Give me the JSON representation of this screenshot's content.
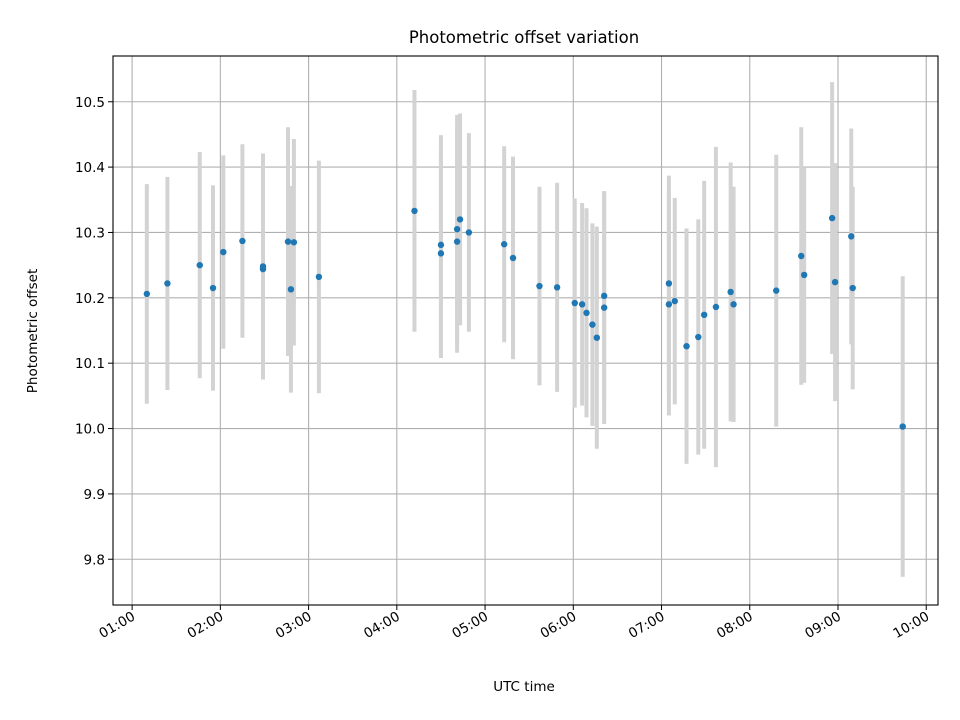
{
  "chart_data": {
    "type": "scatter",
    "title": "Photometric offset variation",
    "xlabel": "UTC time",
    "ylabel": "Photometric offset",
    "xlim": [
      "00:47",
      "10:08"
    ],
    "ylim": [
      9.73,
      10.57
    ],
    "grid": true,
    "x_ticks": [
      "01:00",
      "02:00",
      "03:00",
      "04:00",
      "05:00",
      "06:00",
      "07:00",
      "08:00",
      "09:00",
      "10:00"
    ],
    "y_ticks": [
      9.8,
      9.9,
      10.0,
      10.1,
      10.2,
      10.3,
      10.4,
      10.5
    ],
    "y_tick_labels": [
      "9.8",
      "9.9",
      "10.0",
      "10.1",
      "10.2",
      "10.3",
      "10.4",
      "10.5"
    ],
    "colors": {
      "points": "#1f77b4",
      "error_bars": "#d3d3d3",
      "grid": "#b0b0b0"
    },
    "series": [
      {
        "x": [
          "01:10",
          "01:24",
          "01:46",
          "01:55",
          "02:02",
          "02:15",
          "02:29",
          "02:29",
          "02:46",
          "02:48",
          "02:50",
          "03:07",
          "04:12",
          "04:30",
          "04:30",
          "04:41",
          "04:41",
          "04:43",
          "04:49",
          "05:13",
          "05:19",
          "05:37",
          "05:49",
          "06:01",
          "06:06",
          "06:09",
          "06:13",
          "06:16",
          "06:21",
          "06:21",
          "07:05",
          "07:05",
          "07:09",
          "07:17",
          "07:25",
          "07:29",
          "07:37",
          "07:47",
          "07:49",
          "08:18",
          "08:35",
          "08:37",
          "08:56",
          "08:58",
          "09:09",
          "09:10",
          "09:44"
        ],
        "y": [
          10.206,
          10.222,
          10.25,
          10.215,
          10.27,
          10.287,
          10.248,
          10.244,
          10.286,
          10.213,
          10.285,
          10.232,
          10.333,
          10.281,
          10.268,
          10.305,
          10.286,
          10.32,
          10.3,
          10.282,
          10.261,
          10.218,
          10.216,
          10.192,
          10.19,
          10.177,
          10.159,
          10.139,
          10.203,
          10.185,
          10.222,
          10.19,
          10.195,
          10.126,
          10.14,
          10.174,
          10.186,
          10.209,
          10.19,
          10.211,
          10.264,
          10.235,
          10.322,
          10.224,
          10.294,
          10.215,
          10.003
        ],
        "y_err": [
          0.168,
          0.163,
          0.173,
          0.157,
          0.148,
          0.148,
          0.173,
          0.168,
          0.175,
          0.158,
          0.158,
          0.178,
          0.185,
          0.168,
          0.16,
          0.175,
          0.17,
          0.162,
          0.152,
          0.15,
          0.155,
          0.152,
          0.16,
          0.16,
          0.155,
          0.16,
          0.155,
          0.17,
          0.16,
          0.178,
          0.165,
          0.17,
          0.158,
          0.18,
          0.18,
          0.205,
          0.245,
          0.198,
          0.18,
          0.208,
          0.197,
          0.165,
          0.208,
          0.182,
          0.165,
          0.155,
          0.23
        ]
      }
    ]
  }
}
